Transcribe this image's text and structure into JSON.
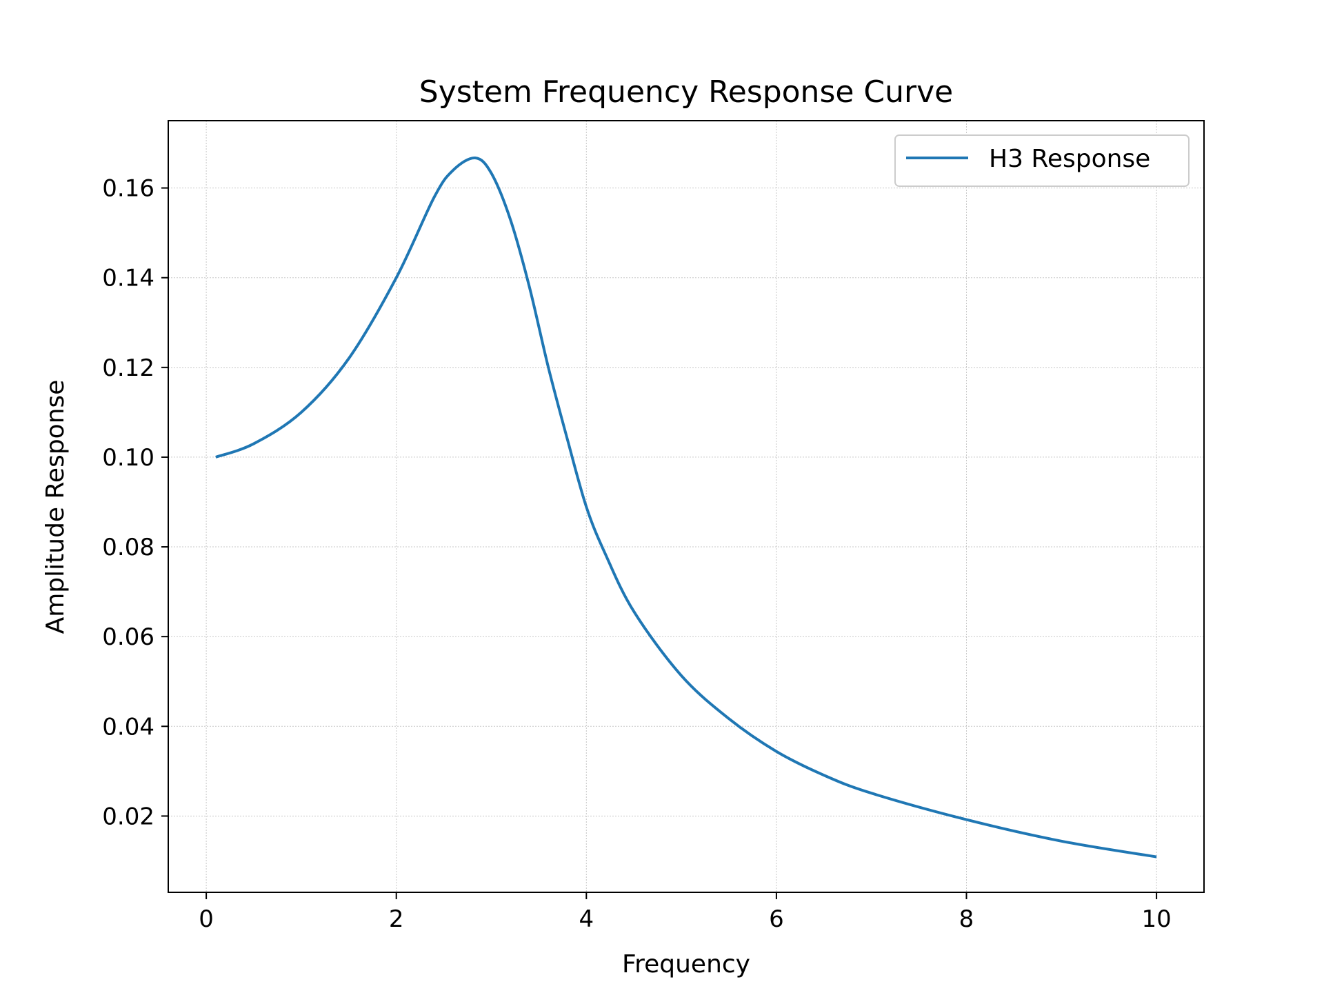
{
  "chart_data": {
    "type": "line",
    "title": "System Frequency Response Curve",
    "xlabel": "Frequency",
    "ylabel": "Amplitude Response",
    "xlim": [
      -0.4,
      10.5
    ],
    "ylim": [
      0.003,
      0.175
    ],
    "xticks": [
      0,
      2,
      4,
      6,
      8,
      10
    ],
    "yticks": [
      0.02,
      0.04,
      0.06,
      0.08,
      0.1,
      0.12,
      0.14,
      0.16
    ],
    "xtick_labels": [
      "0",
      "2",
      "4",
      "6",
      "8",
      "10"
    ],
    "ytick_labels": [
      "0.02",
      "0.04",
      "0.06",
      "0.08",
      "0.10",
      "0.12",
      "0.14",
      "0.16"
    ],
    "grid": true,
    "legend_position": "top-right",
    "series": [
      {
        "name": "H3 Response",
        "color": "#1f77b4",
        "x": [
          0.1,
          0.5,
          1.0,
          1.5,
          2.0,
          2.4,
          2.6,
          2.83,
          3.0,
          3.2,
          3.4,
          3.6,
          3.8,
          4.0,
          4.2,
          4.5,
          5.0,
          5.5,
          6.0,
          6.5,
          7.0,
          8.0,
          9.0,
          10.0
        ],
        "y": [
          0.1,
          0.103,
          0.11,
          0.122,
          0.14,
          0.158,
          0.164,
          0.1667,
          0.1633,
          0.153,
          0.138,
          0.12,
          0.104,
          0.0889,
          0.0784,
          0.0656,
          0.0513,
          0.0417,
          0.0344,
          0.0291,
          0.0251,
          0.0192,
          0.0144,
          0.0109
        ]
      }
    ]
  }
}
